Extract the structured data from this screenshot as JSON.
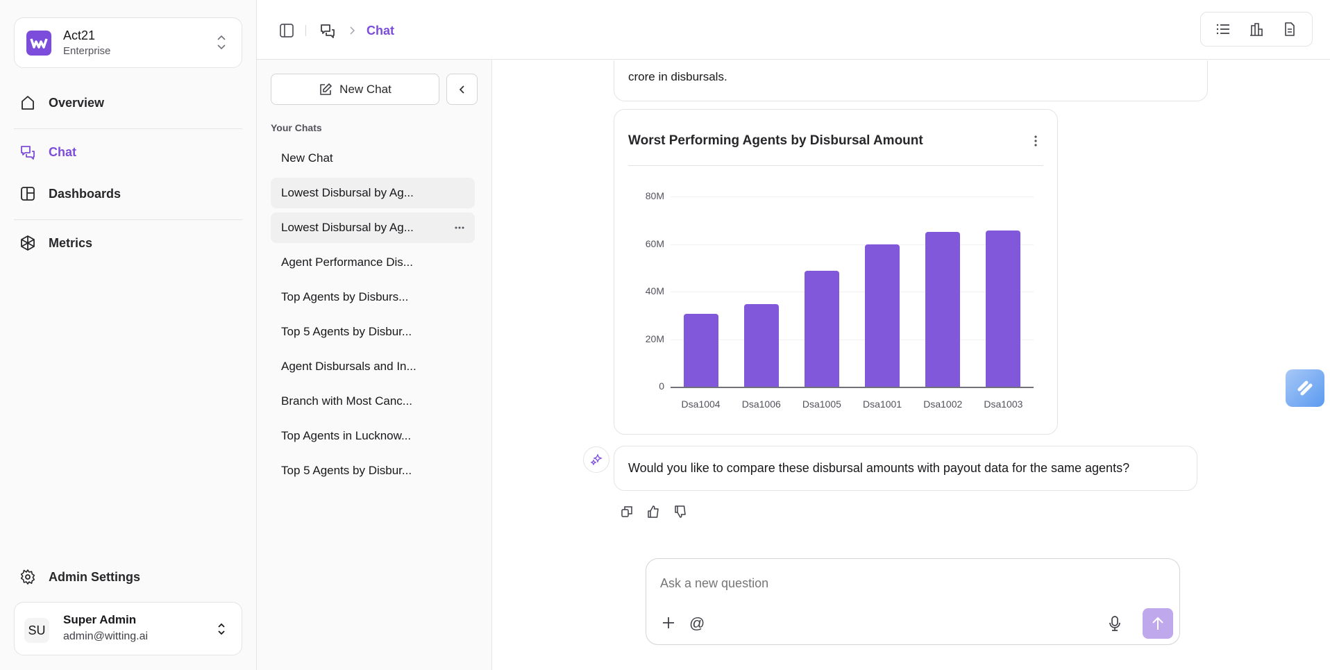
{
  "workspace": {
    "name": "Act21",
    "plan": "Enterprise",
    "logo_text": "W"
  },
  "nav": {
    "overview": "Overview",
    "chat": "Chat",
    "dashboards": "Dashboards",
    "metrics": "Metrics",
    "admin_settings": "Admin Settings"
  },
  "user": {
    "initials": "SU",
    "name": "Super Admin",
    "email": "admin@witting.ai"
  },
  "breadcrumb": {
    "current": "Chat"
  },
  "chatlist": {
    "new_chat_label": "New Chat",
    "section_label": "Your Chats",
    "items": [
      "New Chat",
      "Lowest Disbursal by Ag...",
      "Lowest Disbursal by Ag...",
      "Agent Performance Dis...",
      "Top Agents by Disburs...",
      "Top 5 Agents by Disbur...",
      "Agent Disbursals and In...",
      "Branch with Most Canc...",
      "Top Agents in Lucknow...",
      "Top 5 Agents by Disbur..."
    ]
  },
  "conversation": {
    "prev_message_tail": "crore in disbursals.",
    "followup": "Would you like to compare these disbursal amounts with payout data for the same agents?"
  },
  "input": {
    "placeholder": "Ask a new question"
  },
  "colors": {
    "accent": "#7c4ddb",
    "bar": "#8058d9",
    "send": "#c0a8ec"
  },
  "chart_data": {
    "type": "bar",
    "title": "Worst Performing Agents by Disbursal Amount",
    "categories": [
      "Dsa1004",
      "Dsa1006",
      "Dsa1005",
      "Dsa1001",
      "Dsa1002",
      "Dsa1003"
    ],
    "values": [
      30800000,
      34700000,
      48700000,
      60000000,
      65000000,
      65800000
    ],
    "yticks": [
      0,
      20000000,
      40000000,
      60000000,
      80000000
    ],
    "ytick_labels": [
      "0",
      "20M",
      "40M",
      "60M",
      "80M"
    ],
    "ylim": [
      0,
      80000000
    ],
    "xlabel": "",
    "ylabel": "",
    "grid": true
  }
}
